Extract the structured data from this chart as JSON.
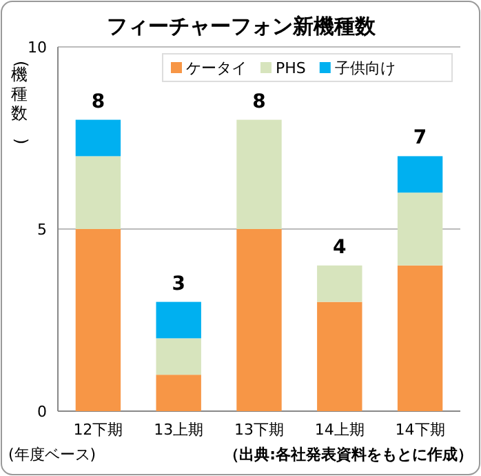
{
  "chart_data": {
    "type": "bar",
    "title": "フィーチャーフォン新機種数",
    "ylabel": "(機種数)",
    "stacked": true,
    "categories": [
      "12下期",
      "13上期",
      "13下期",
      "14上期",
      "14下期"
    ],
    "series": [
      {
        "name": "ケータイ",
        "color": "#f79646",
        "values": [
          5,
          1,
          5,
          3,
          4
        ]
      },
      {
        "name": "PHS",
        "color": "#d7e4bd",
        "values": [
          2,
          1,
          3,
          1,
          2
        ]
      },
      {
        "name": "子供向け",
        "color": "#00b0f0",
        "values": [
          1,
          1,
          0,
          0,
          1
        ]
      }
    ],
    "totals": [
      "8",
      "3",
      "8",
      "4",
      "7"
    ],
    "ylim": [
      0,
      10
    ],
    "yticks": [
      0,
      5,
      10
    ],
    "grid": "y",
    "legend": "top",
    "annotations": [
      "(年度ベース)",
      "（出典:各社発表資料をもとに作成）"
    ]
  }
}
